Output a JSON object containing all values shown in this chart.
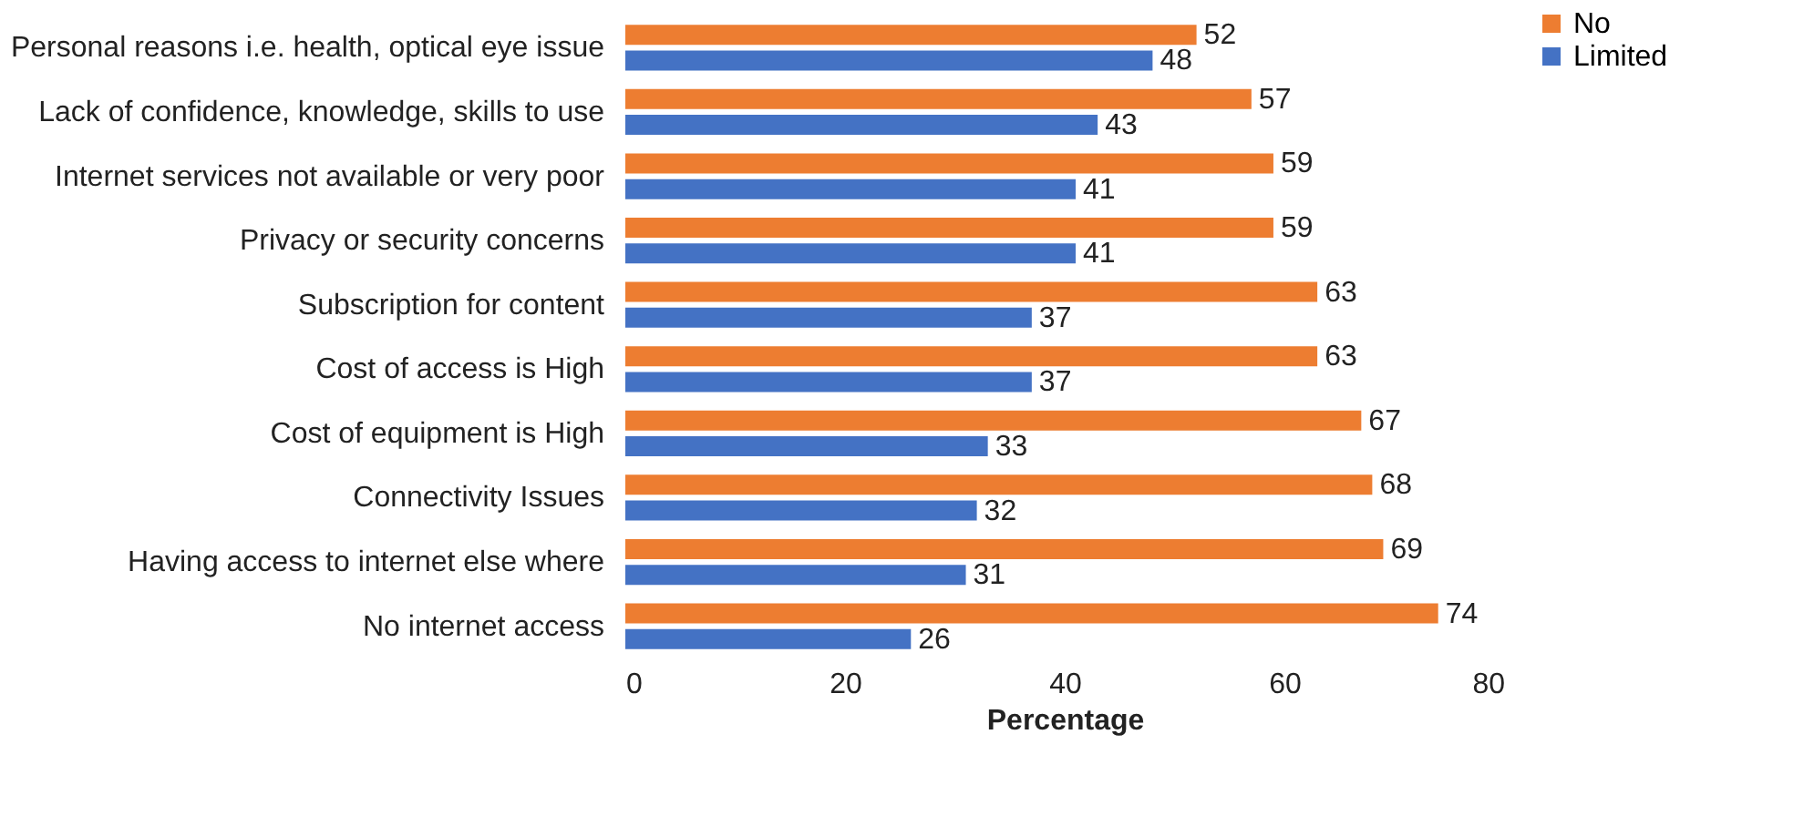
{
  "chart_data": {
    "type": "bar",
    "orientation": "horizontal",
    "xlabel": "Percentage",
    "categories": [
      "Personal reasons i.e. health, optical eye issue",
      "Lack of confidence, knowledge, skills to use",
      "Internet services not available or very poor",
      "Privacy or security concerns",
      "Subscription for content",
      "Cost of access is High",
      "Cost of equipment is High",
      "Connectivity Issues",
      "Having access to internet else where",
      "No internet access"
    ],
    "series": [
      {
        "name": "No",
        "color": "#ed7d31",
        "values": [
          52,
          57,
          59,
          59,
          63,
          63,
          67,
          68,
          69,
          74
        ]
      },
      {
        "name": "Limited",
        "color": "#4472c4",
        "values": [
          48,
          43,
          41,
          41,
          37,
          37,
          33,
          32,
          31,
          26
        ]
      }
    ],
    "xlim": [
      0,
      80
    ],
    "xticks": [
      0,
      20,
      40,
      60,
      80
    ],
    "data_labels": true,
    "legend": "right",
    "grid": false
  }
}
